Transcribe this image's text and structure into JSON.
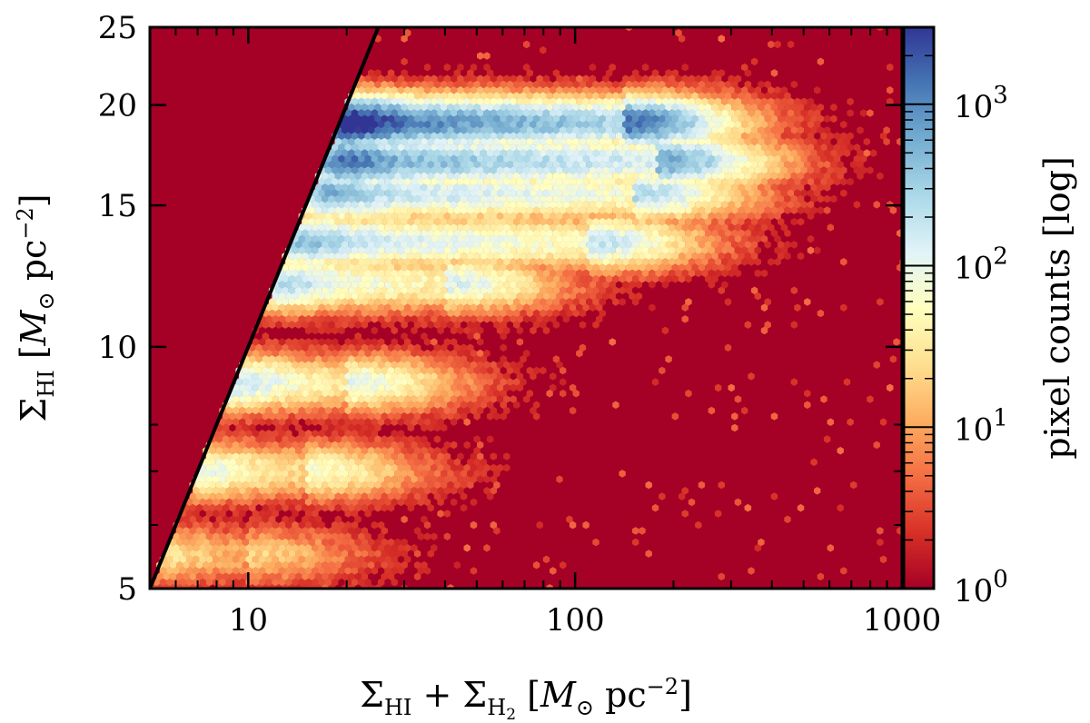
{
  "chart_data": {
    "type": "heatmap",
    "subtype": "hexbin-2d-histogram",
    "title": "",
    "xlabel": "Σ_HI + Σ_H2 [M⊙ pc^-2]",
    "ylabel": "Σ_HI [M⊙ pc^-2]",
    "colorbar_label": "pixel counts [log]",
    "x_scale": "log",
    "y_scale": "log",
    "xlim": [
      5,
      1000
    ],
    "ylim": [
      5,
      25
    ],
    "x_ticks": [
      10,
      100,
      1000
    ],
    "x_tick_labels": [
      "10",
      "100",
      "1000"
    ],
    "y_ticks": [
      5,
      10,
      15,
      20,
      25
    ],
    "y_tick_labels": [
      "5",
      "10",
      "15",
      "20",
      "25"
    ],
    "color_scale": "log",
    "color_range": [
      1,
      3000
    ],
    "colorbar_ticks": [
      1,
      10,
      100,
      1000
    ],
    "colorbar_tick_labels": [
      "10^0",
      "10^1",
      "10^2",
      "10^3"
    ],
    "colormap": [
      "#a50026",
      "#d73027",
      "#f46d43",
      "#fdae61",
      "#fee090",
      "#ffffbf",
      "#e0f3f8",
      "#abd9e9",
      "#74add1",
      "#4575b4",
      "#313695"
    ],
    "background_color": "#a50026",
    "reference_line": {
      "label": "",
      "relation": "y = x",
      "x": [
        5,
        25
      ],
      "y": [
        5,
        25
      ],
      "color": "#000000"
    },
    "density_ridges": [
      {
        "y": 19.0,
        "x_range": [
          20,
          140
        ],
        "peak_log_count": 3.2
      },
      {
        "y": 17.0,
        "x_range": [
          20,
          180
        ],
        "peak_log_count": 2.8
      },
      {
        "y": 15.5,
        "x_range": [
          18,
          150
        ],
        "peak_log_count": 2.4
      },
      {
        "y": 13.5,
        "x_range": [
          15,
          110
        ],
        "peak_log_count": 2.3
      },
      {
        "y": 12.0,
        "x_range": [
          13,
          40
        ],
        "peak_log_count": 2.1
      },
      {
        "y": 9.0,
        "x_range": [
          9,
          20
        ],
        "peak_log_count": 2.0
      },
      {
        "y": 7.0,
        "x_range": [
          6,
          15
        ],
        "peak_log_count": 1.8
      },
      {
        "y": 5.5,
        "x_range": [
          5,
          10
        ],
        "peak_log_count": 1.3
      }
    ]
  }
}
